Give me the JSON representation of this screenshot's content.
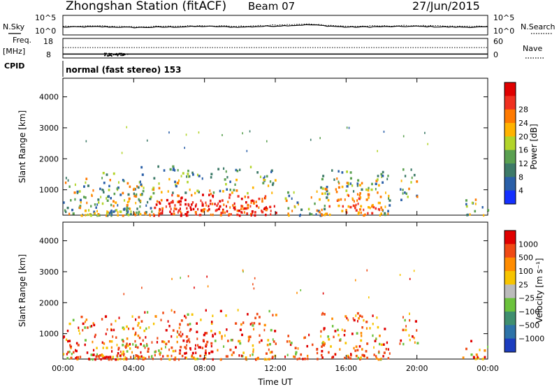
{
  "header": {
    "station": "Zhongshan Station (fitACF)",
    "beam": "Beam 07",
    "date": "27/Jun/2015"
  },
  "chart_data": [
    {
      "type": "line",
      "panel": "noise",
      "left_label": "N.Sky",
      "right_label": "N.Search",
      "left_ticks": [
        "10^5",
        "10^0"
      ],
      "right_ticks": [
        "10^5",
        "10^0"
      ],
      "log_scale": true,
      "series": [
        {
          "name": "N.Sky",
          "style": "solid",
          "values_log10": [
            2.0,
            2.1,
            1.9,
            2.0,
            2.2,
            2.0,
            2.3,
            2.6,
            2.0,
            2.1,
            2.2,
            2.0,
            2.0
          ]
        },
        {
          "name": "N.Search",
          "style": "dotted",
          "values_log10": [
            2.2,
            2.3,
            2.1,
            2.2,
            2.4,
            2.2,
            2.5,
            2.8,
            2.2,
            2.3,
            2.4,
            2.2,
            2.2
          ]
        }
      ]
    },
    {
      "type": "line",
      "panel": "frequency",
      "left_label": "Freq.",
      "left_unit": "[MHz]",
      "right_label": "Nave",
      "left_ticks": [
        "18",
        "8"
      ],
      "right_ticks": [
        "60",
        "0"
      ],
      "ylim_left": [
        8,
        18
      ],
      "ylim_right": [
        0,
        60
      ],
      "series": [
        {
          "name": "Freq.",
          "style": "solid",
          "x_hours": [
            0,
            24
          ],
          "values": [
            10,
            10
          ]
        },
        {
          "name": "Nave",
          "style": "dotted",
          "x_hours": [
            0,
            24
          ],
          "values": [
            32,
            32
          ]
        }
      ],
      "cpid_label": "CPID",
      "cpid_text": "normal (fast stereo) 153"
    },
    {
      "type": "heatmap",
      "panel": "power",
      "ylabel": "Slant Range [km]",
      "yticks": [
        1000,
        2000,
        3000,
        4000
      ],
      "ylim": [
        180,
        4600
      ],
      "colorbar_label": "Power [dB]",
      "colorbar_ticks": [
        4,
        8,
        12,
        16,
        20,
        24,
        28
      ],
      "colorbar_colors": [
        "#1430ff",
        "#2a5fa8",
        "#3d7a68",
        "#5aa050",
        "#b2d42a",
        "#ffb300",
        "#ff7a00",
        "#f03020",
        "#e00000"
      ],
      "echo_regions_hours_km": [
        [
          0.0,
          4.5,
          200,
          1600
        ],
        [
          1.5,
          3.8,
          200,
          1200
        ],
        [
          4.0,
          12.0,
          200,
          1800
        ],
        [
          6.0,
          11.5,
          300,
          1000
        ],
        [
          12.5,
          15.0,
          200,
          1000
        ],
        [
          14.5,
          18.5,
          200,
          1700
        ],
        [
          15.5,
          17.5,
          500,
          1300
        ],
        [
          19.0,
          20.0,
          700,
          1700
        ],
        [
          22.5,
          24.0,
          200,
          800
        ]
      ]
    },
    {
      "type": "heatmap",
      "panel": "velocity",
      "ylabel": "Slant Range [km]",
      "yticks": [
        1000,
        2000,
        3000,
        4000
      ],
      "ylim": [
        180,
        4600
      ],
      "xlabel": "Time UT",
      "xticks": [
        "00:00",
        "04:00",
        "08:00",
        "12:00",
        "16:00",
        "20:00",
        "00:00"
      ],
      "xlim_hours": [
        0,
        24
      ],
      "colorbar_label": "Velocity [m s⁻¹]",
      "colorbar_ticks": [
        "1000",
        "500",
        "100",
        "25",
        "−25",
        "−100",
        "−500",
        "−1000"
      ],
      "colorbar_colors": [
        "#1c3dbf",
        "#2d73a8",
        "#3f8f6f",
        "#6bc23c",
        "#bbbbbb",
        "#f7c400",
        "#ff8c00",
        "#f04a14",
        "#e00000"
      ],
      "echo_regions_hours_km": [
        [
          0.0,
          4.5,
          200,
          1600
        ],
        [
          1.5,
          3.8,
          200,
          1200
        ],
        [
          4.0,
          12.0,
          200,
          1800
        ],
        [
          6.5,
          8.5,
          400,
          1100
        ],
        [
          12.5,
          15.0,
          200,
          1000
        ],
        [
          14.5,
          18.5,
          200,
          1700
        ],
        [
          19.0,
          20.0,
          700,
          1700
        ],
        [
          22.5,
          24.0,
          200,
          800
        ]
      ]
    }
  ]
}
